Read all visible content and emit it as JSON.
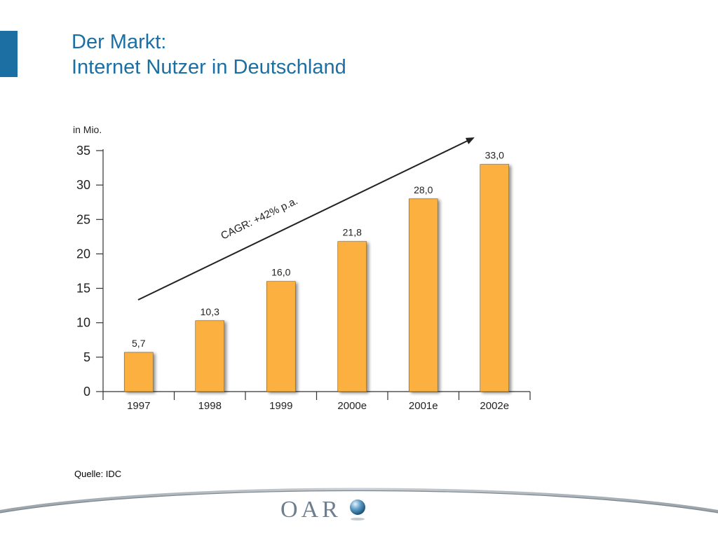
{
  "slide": {
    "title_line1": "Der Markt:",
    "title_line2": "Internet Nutzer in Deutschland",
    "source": "Quelle: IDC",
    "logo_text": "OAR",
    "accent_color": "#1b6fa3"
  },
  "chart_data": {
    "type": "bar",
    "unit_label": "in Mio.",
    "categories": [
      "1997",
      "1998",
      "1999",
      "2000e",
      "2001e",
      "2002e"
    ],
    "values": [
      5.7,
      10.3,
      16.0,
      21.8,
      28.0,
      33.0
    ],
    "value_labels": [
      "5,7",
      "10,3",
      "16,0",
      "21,8",
      "28,0",
      "33,0"
    ],
    "ylim": [
      0,
      35
    ],
    "yticks": [
      0,
      5,
      10,
      15,
      20,
      25,
      30,
      35
    ],
    "bar_color": "#fbb040",
    "annotation": "CAGR: +42% p.a.",
    "legend": "none",
    "grid": false
  }
}
